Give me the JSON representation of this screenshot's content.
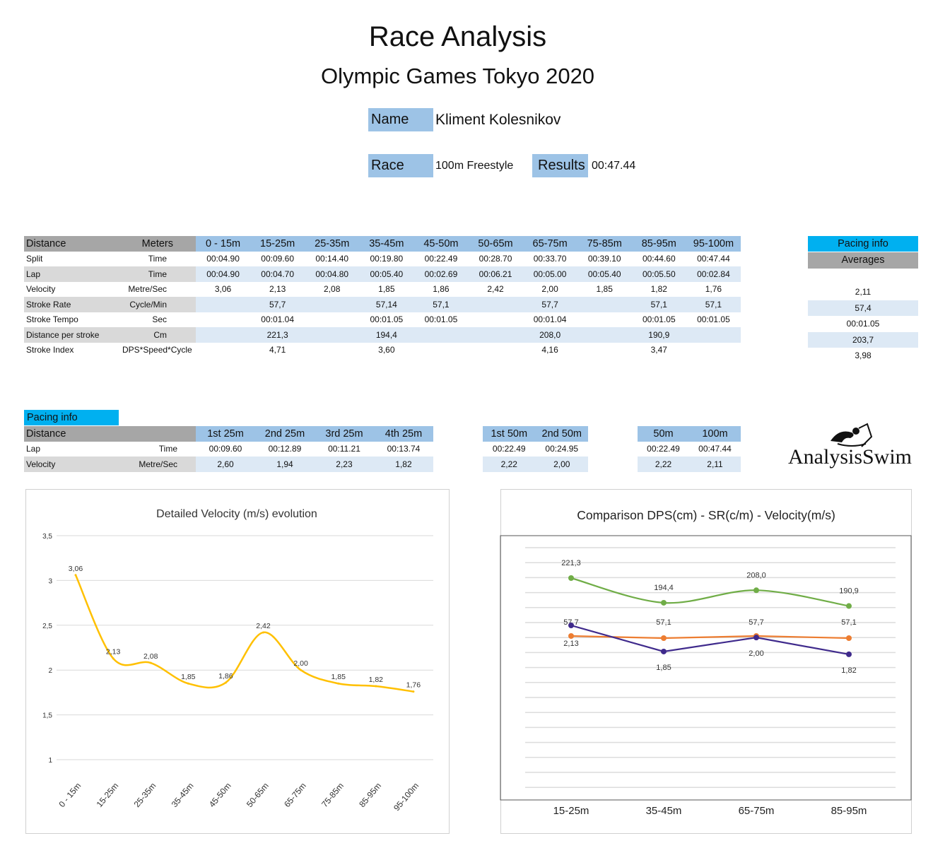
{
  "header": {
    "title": "Race Analysis",
    "subtitle": "Olympic Games Tokyo 2020",
    "name_label": "Name",
    "name": "Kliment Kolesnikov",
    "race_label": "Race",
    "race": "100m Freestyle",
    "results_label": "Results",
    "results": "00:47.44"
  },
  "main_table": {
    "headers": [
      "Distance",
      "Meters",
      "0 - 15m",
      "15-25m",
      "25-35m",
      "35-45m",
      "45-50m",
      "50-65m",
      "65-75m",
      "75-85m",
      "85-95m",
      "95-100m"
    ],
    "rows": [
      {
        "label": "Split",
        "unit": "Time",
        "values": [
          "00:04.90",
          "00:09.60",
          "00:14.40",
          "00:19.80",
          "00:22.49",
          "00:28.70",
          "00:33.70",
          "00:39.10",
          "00:44.60",
          "00:47.44"
        ]
      },
      {
        "label": "Lap",
        "unit": "Time",
        "values": [
          "00:04.90",
          "00:04.70",
          "00:04.80",
          "00:05.40",
          "00:02.69",
          "00:06.21",
          "00:05.00",
          "00:05.40",
          "00:05.50",
          "00:02.84"
        ]
      },
      {
        "label": "Velocity",
        "unit": "Metre/Sec",
        "values": [
          "3,06",
          "2,13",
          "2,08",
          "1,85",
          "1,86",
          "2,42",
          "2,00",
          "1,85",
          "1,82",
          "1,76"
        ]
      },
      {
        "label": "Stroke Rate",
        "unit": "Cycle/Min",
        "values": [
          "",
          "57,7",
          "",
          "57,14",
          "57,1",
          "",
          "57,7",
          "",
          "57,1",
          "57,1"
        ]
      },
      {
        "label": "Stroke Tempo",
        "unit": "Sec",
        "values": [
          "",
          "00:01.04",
          "",
          "00:01.05",
          "00:01.05",
          "",
          "00:01.04",
          "",
          "00:01.05",
          "00:01.05"
        ]
      },
      {
        "label": "Distance per stroke",
        "unit": "Cm",
        "values": [
          "",
          "221,3",
          "",
          "194,4",
          "",
          "",
          "208,0",
          "",
          "190,9",
          ""
        ]
      },
      {
        "label": "Stroke Index",
        "unit": "DPS*Speed*Cycle",
        "values": [
          "",
          "4,71",
          "",
          "3,60",
          "",
          "",
          "4,16",
          "",
          "3,47",
          ""
        ]
      }
    ]
  },
  "averages": {
    "title": "Pacing info",
    "subtitle": "Averages",
    "values": [
      "2,11",
      "57,4",
      "00:01.05",
      "203,7",
      "3,98"
    ]
  },
  "pacing": {
    "title": "Pacing info",
    "quarters": {
      "headers": [
        "Distance",
        "1st 25m",
        "2nd 25m",
        "3rd 25m",
        "4th 25m"
      ],
      "rows": [
        {
          "label": "Lap",
          "unit": "Time",
          "values": [
            "00:09.60",
            "00:12.89",
            "00:11.21",
            "00:13.74"
          ]
        },
        {
          "label": "Velocity",
          "unit": "Metre/Sec",
          "values": [
            "2,60",
            "1,94",
            "2,23",
            "1,82"
          ]
        }
      ]
    },
    "halves": {
      "headers": [
        "1st 50m",
        "2nd 50m"
      ],
      "rows": [
        [
          "00:22.49",
          "00:24.95"
        ],
        [
          "2,22",
          "2,00"
        ]
      ]
    },
    "cumulative": {
      "headers": [
        "50m",
        "100m"
      ],
      "rows": [
        [
          "00:22.49",
          "00:47.44"
        ],
        [
          "2,22",
          "2,11"
        ]
      ]
    }
  },
  "logo": {
    "text": "AnalysisSwim"
  },
  "chart_data": [
    {
      "type": "line",
      "title": "Detailed Velocity (m/s)  evolution",
      "xlabel": "",
      "ylabel": "",
      "categories": [
        "0 - 15m",
        "15-25m",
        "25-35m",
        "35-45m",
        "45-50m",
        "50-65m",
        "65-75m",
        "75-85m",
        "85-95m",
        "95-100m"
      ],
      "values": [
        3.06,
        2.13,
        2.08,
        1.85,
        1.86,
        2.42,
        2.0,
        1.85,
        1.82,
        1.76
      ],
      "labels": [
        "3,06",
        "2,13",
        "2,08",
        "1,85",
        "1,86",
        "2,42",
        "2,00",
        "1,85",
        "1,82",
        "1,76"
      ],
      "ylim": [
        1,
        3.5
      ],
      "yticks": [
        "1",
        "1,5",
        "2",
        "2,5",
        "3",
        "3,5"
      ],
      "color": "#ffc000",
      "grid": true
    },
    {
      "type": "line",
      "title": "Comparison DPS(cm) - SR(c/m) - Velocity(m/s)",
      "categories": [
        "15-25m",
        "35-45m",
        "65-75m",
        "85-95m"
      ],
      "series": [
        {
          "name": "DPS",
          "values": [
            221.3,
            194.4,
            208.0,
            190.9
          ],
          "labels": [
            "221,3",
            "194,4",
            "208,0",
            "190,9"
          ],
          "color": "#70ad47"
        },
        {
          "name": "SR",
          "values": [
            57.7,
            57.1,
            57.7,
            57.1
          ],
          "labels": [
            "57,7",
            "57,1",
            "57,7",
            "57,1"
          ],
          "color": "#ed7d31"
        },
        {
          "name": "Velocity",
          "values": [
            2.13,
            1.85,
            2.0,
            1.82
          ],
          "labels": [
            "2,13",
            "1,85",
            "2,00",
            "1,82"
          ],
          "color": "#3f2a8c"
        }
      ],
      "grid": true
    }
  ]
}
